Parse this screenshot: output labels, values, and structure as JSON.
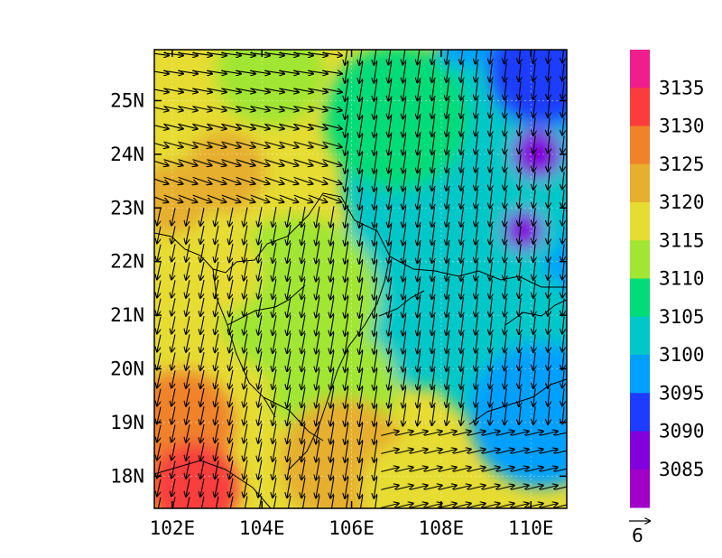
{
  "chart_data": {
    "type": "heatmap",
    "title": "",
    "xlabel": "",
    "ylabel": "",
    "x_ticks": [
      "102E",
      "104E",
      "106E",
      "108E",
      "110E"
    ],
    "y_ticks": [
      "25N",
      "24N",
      "23N",
      "22N",
      "21N",
      "20N",
      "19N",
      "18N"
    ],
    "xlim": [
      101.6,
      110.8
    ],
    "ylim": [
      17.4,
      25.95
    ],
    "colorbar": {
      "labels": [
        "3135",
        "3130",
        "3125",
        "3120",
        "3115",
        "3110",
        "3105",
        "3100",
        "3095",
        "3090",
        "3085"
      ],
      "colors": [
        "#f01e8c",
        "#fa3c3c",
        "#f0822a",
        "#e6af2e",
        "#e6dc32",
        "#a0e632",
        "#00dc78",
        "#00c8c8",
        "#00a0ff",
        "#1e3cff",
        "#8200dc",
        "#a000c8"
      ]
    },
    "vector_reference": {
      "label": "6"
    },
    "grid": true
  }
}
